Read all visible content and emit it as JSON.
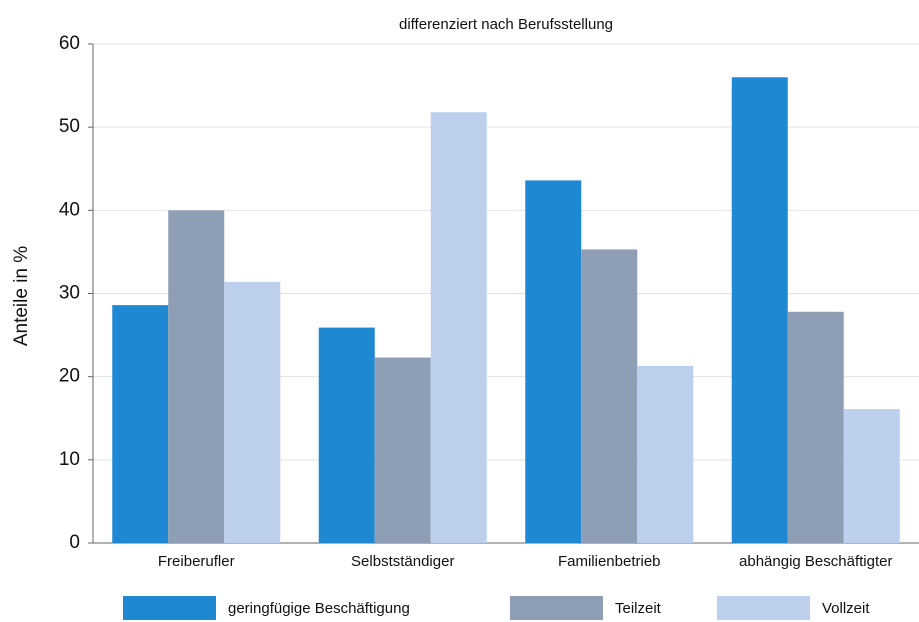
{
  "chart_data": {
    "type": "bar",
    "title": "differenziert nach Berufsstellung",
    "y_label": "Anteile in %",
    "categories": [
      "Freiberufler",
      "Selbstständiger",
      "Familienbetrieb",
      "abhängig Beschäftigter"
    ],
    "series": [
      {
        "name": "geringfügige Beschäftigung",
        "color": "#1f88d2",
        "values": [
          28.6,
          25.9,
          43.6,
          56.0
        ]
      },
      {
        "name": "Teilzeit",
        "color": "#8e9fb5",
        "values": [
          40.0,
          22.3,
          35.3,
          27.8
        ]
      },
      {
        "name": "Vollzeit",
        "color": "#bcd0ee",
        "values": [
          31.4,
          51.8,
          21.3,
          16.1
        ]
      }
    ],
    "ylim": [
      0,
      60
    ],
    "yticks": [
      0,
      10,
      20,
      30,
      40,
      50,
      60
    ],
    "grid": true,
    "legend": "bottom"
  }
}
